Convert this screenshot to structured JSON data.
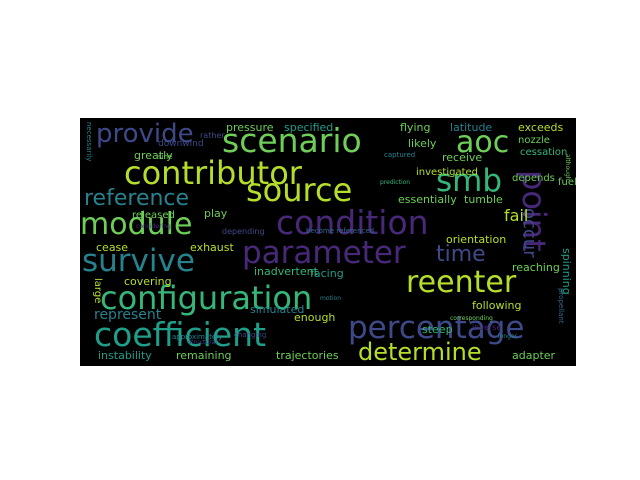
{
  "palette": {
    "yellow_green": "#b5de2b",
    "green": "#6ece58",
    "teal_green": "#35b779",
    "teal": "#1f9e89",
    "blue_teal": "#26828e",
    "blue": "#31688e",
    "indigo": "#3e4989",
    "purple": "#482878",
    "dark_purple": "#440154"
  },
  "words": {
    "configuration": "configuration",
    "coefficient": "coefficient",
    "percentage": "percentage",
    "parameter": "parameter",
    "contributor": "contributor",
    "condition": "condition",
    "scenario": "scenario",
    "reenter": "reenter",
    "survive": "survive",
    "source": "source",
    "module": "module",
    "reference": "reference",
    "determine": "determine",
    "provide": "provide",
    "point": "point",
    "aoc": "aoc",
    "smb": "smb",
    "time": "time",
    "occur": "occur",
    "fail": "fail",
    "represent": "represent",
    "instability": "instability",
    "released": "released",
    "investigated": "investigated",
    "essentially": "essentially",
    "tumble": "tumble",
    "orientation": "orientation",
    "facing": "facing",
    "inadvertent": "inadvertent",
    "simulated": "simulated",
    "exhaust": "exhaust",
    "covering": "covering",
    "cease": "cease",
    "remaining": "remaining",
    "trajectories": "trajectories",
    "enough": "enough",
    "following": "following",
    "reaching": "reaching",
    "spinning": "spinning",
    "adapter": "adapter",
    "pressure": "pressure",
    "specified": "specified",
    "flying": "flying",
    "latitude": "latitude",
    "exceeds": "exceeds",
    "nozzle": "nozzle",
    "cessation": "cessation",
    "likely": "likely",
    "receive": "receive",
    "greatly": "greatly",
    "downwind": "downwind",
    "depends": "depends",
    "fuel": "fuel",
    "play": "play",
    "large": "large",
    "steep": "steep",
    "depending": "depending",
    "rather": "rather",
    "captured": "captured",
    "becomes_referenced": "become referenced",
    "approximately": "approximately",
    "inverse": "inverse",
    "changing": "changing",
    "necessarily": "necessarily",
    "prediction": "prediction",
    "propellant": "propellant",
    "structural": "structural",
    "although": "although",
    "longer": "longer",
    "considering": "considering",
    "corresponding": "corresponding",
    "sine": "sine",
    "motion": "motion"
  }
}
